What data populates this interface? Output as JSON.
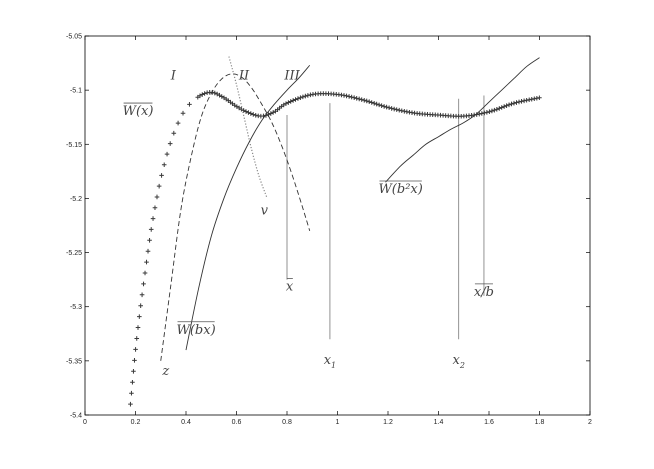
{
  "chart_data": {
    "type": "line",
    "xlim": [
      0,
      2
    ],
    "ylim": [
      -5.4,
      -5.05
    ],
    "grid": false,
    "x_ticks": [
      0,
      0.2,
      0.4,
      0.6,
      0.8,
      1,
      1.2,
      1.4,
      1.6,
      1.8,
      2
    ],
    "x_tick_labels": [
      "0",
      "0.2",
      "0.4",
      "0.6",
      "0.8",
      "1",
      "1.2",
      "1.4",
      "1.6",
      "1.8",
      "2"
    ],
    "y_ticks": [
      -5.4,
      -5.35,
      -5.3,
      -5.25,
      -5.2,
      -5.15,
      -5.1,
      -5.05
    ],
    "y_tick_labels": [
      "-5.4",
      "-5.35",
      "-5.3",
      "-5.25",
      "-5.2",
      "-5.15",
      "-5.1",
      "-5.05"
    ],
    "series": [
      {
        "style": "marker-dense",
        "color": "#3a3a3a",
        "x": [
          0.18,
          0.2,
          0.22,
          0.24,
          0.26,
          0.28,
          0.3,
          0.33,
          0.36,
          0.4,
          0.45,
          0.5,
          0.55,
          0.6,
          0.65,
          0.7,
          0.75,
          0.8,
          0.9,
          1.0,
          1.1,
          1.2,
          1.3,
          1.4,
          1.5,
          1.6,
          1.7,
          1.8
        ],
        "y": [
          -5.39,
          -5.34,
          -5.3,
          -5.265,
          -5.232,
          -5.205,
          -5.182,
          -5.155,
          -5.135,
          -5.117,
          -5.106,
          -5.102,
          -5.107,
          -5.115,
          -5.121,
          -5.124,
          -5.12,
          -5.112,
          -5.104,
          -5.104,
          -5.109,
          -5.116,
          -5.121,
          -5.123,
          -5.124,
          -5.12,
          -5.112,
          -5.107
        ]
      },
      {
        "style": "dashed",
        "color": "#333333",
        "x": [
          0.3,
          0.34,
          0.38,
          0.42,
          0.46,
          0.5,
          0.54,
          0.58,
          0.62,
          0.66,
          0.7,
          0.74,
          0.78,
          0.82,
          0.86,
          0.89
        ],
        "y": [
          -5.35,
          -5.28,
          -5.21,
          -5.162,
          -5.125,
          -5.103,
          -5.09,
          -5.085,
          -5.088,
          -5.098,
          -5.113,
          -5.13,
          -5.152,
          -5.178,
          -5.207,
          -5.23
        ]
      },
      {
        "style": "dotted",
        "color": "#888888",
        "x": [
          0.57,
          0.6,
          0.63,
          0.66,
          0.69,
          0.72
        ],
        "y": [
          -5.069,
          -5.095,
          -5.125,
          -5.155,
          -5.18,
          -5.199
        ]
      },
      {
        "style": "solid",
        "color": "#333333",
        "x": [
          0.4,
          0.45,
          0.5,
          0.55,
          0.6,
          0.65,
          0.7,
          0.75,
          0.8,
          0.85,
          0.89
        ],
        "y": [
          -5.34,
          -5.283,
          -5.235,
          -5.2,
          -5.172,
          -5.148,
          -5.128,
          -5.113,
          -5.1,
          -5.088,
          -5.077
        ]
      },
      {
        "style": "solid",
        "color": "#333333",
        "x": [
          1.19,
          1.25,
          1.3,
          1.35,
          1.4,
          1.45,
          1.5,
          1.55,
          1.6,
          1.65,
          1.7,
          1.75,
          1.8
        ],
        "y": [
          -5.185,
          -5.17,
          -5.16,
          -5.15,
          -5.143,
          -5.136,
          -5.13,
          -5.122,
          -5.111,
          -5.1,
          -5.089,
          -5.078,
          -5.07
        ]
      }
    ],
    "reference_lines": [
      {
        "x": 0.8,
        "y_top": -5.123,
        "y_bottom": -5.275
      },
      {
        "x": 0.97,
        "y_top": -5.112,
        "y_bottom": -5.33
      },
      {
        "x": 1.48,
        "y_top": -5.108,
        "y_bottom": -5.33
      },
      {
        "x": 1.58,
        "y_top": -5.105,
        "y_bottom": -5.29
      }
    ],
    "annotations": [
      {
        "text": "I",
        "x": 0.35,
        "y": -5.09
      },
      {
        "text": "II",
        "x": 0.63,
        "y": -5.09
      },
      {
        "text": "III",
        "x": 0.82,
        "y": -5.09
      },
      {
        "text": "W(x)",
        "x": 0.21,
        "y": -5.123,
        "overline": true
      },
      {
        "text": "v",
        "x": 0.71,
        "y": -5.215
      },
      {
        "text": "W(b²x)",
        "x": 1.25,
        "y": -5.195,
        "overline": true
      },
      {
        "text": "x",
        "x": 0.81,
        "y": -5.285,
        "overline": true
      },
      {
        "text": "x/b",
        "x": 1.58,
        "y": -5.29,
        "overline": true
      },
      {
        "text": "W(bx)",
        "x": 0.44,
        "y": -5.325,
        "overline": true
      },
      {
        "text": "z",
        "x": 0.32,
        "y": -5.363
      },
      {
        "text": "x",
        "sub": "1",
        "x": 0.97,
        "y": -5.353
      },
      {
        "text": "x",
        "sub": "2",
        "x": 1.48,
        "y": -5.353
      }
    ]
  }
}
